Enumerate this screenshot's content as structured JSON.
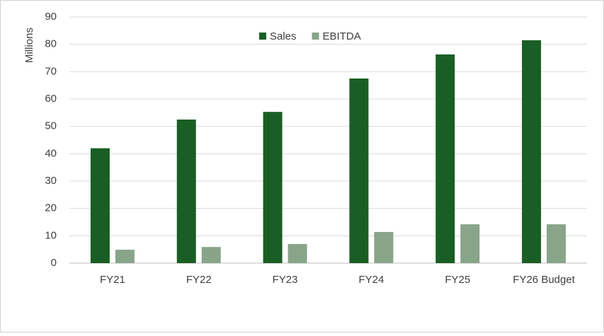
{
  "chart_data": {
    "type": "bar",
    "y_label": "Millions",
    "categories": [
      "FY21",
      "FY22",
      "FY23",
      "FY24",
      "FY25",
      "FY26 Budget"
    ],
    "series": [
      {
        "name": "Sales",
        "color": "#195e24",
        "values": [
          42,
          52.5,
          55.3,
          67.5,
          76.3,
          81.5
        ]
      },
      {
        "name": "EBITDA",
        "color": "#88a489",
        "values": [
          4.9,
          5.9,
          7,
          11.4,
          14.2,
          14.2
        ]
      }
    ],
    "ylim": [
      0,
      90
    ],
    "yticks": [
      0,
      10,
      20,
      30,
      40,
      50,
      60,
      70,
      80,
      90
    ],
    "grid": true,
    "legend": "top"
  }
}
